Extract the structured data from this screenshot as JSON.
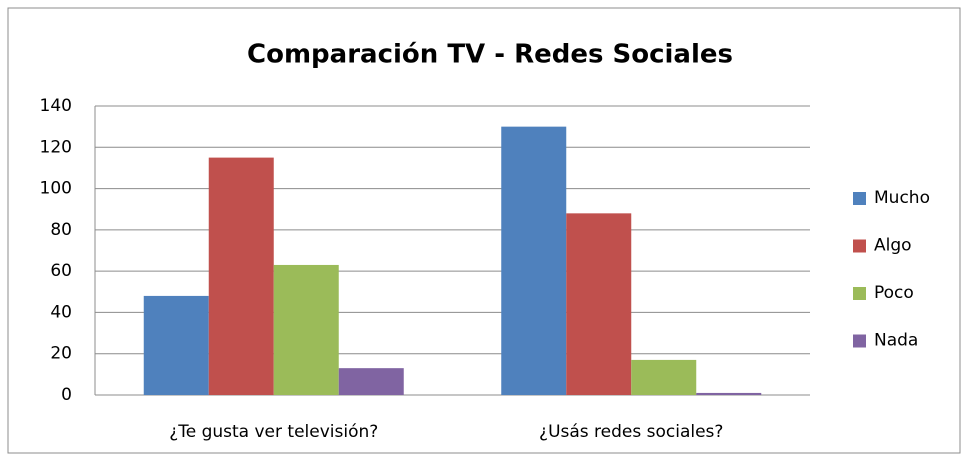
{
  "chart_data": {
    "type": "bar",
    "title": "Comparación TV - Redes Sociales",
    "categories": [
      "¿Te gusta ver televisión?",
      "¿Usás redes sociales?"
    ],
    "series": [
      {
        "name": "Mucho",
        "color": "#4f81bd",
        "values": [
          48,
          130
        ]
      },
      {
        "name": "Algo",
        "color": "#c0504d",
        "values": [
          115,
          88
        ]
      },
      {
        "name": "Poco",
        "color": "#9bbb59",
        "values": [
          63,
          17
        ]
      },
      {
        "name": "Nada",
        "color": "#8064a2",
        "values": [
          13,
          1
        ]
      }
    ],
    "ylim": [
      0,
      140
    ],
    "yticks": [
      0,
      20,
      40,
      60,
      80,
      100,
      120,
      140
    ],
    "grid": true,
    "legend": "right"
  }
}
